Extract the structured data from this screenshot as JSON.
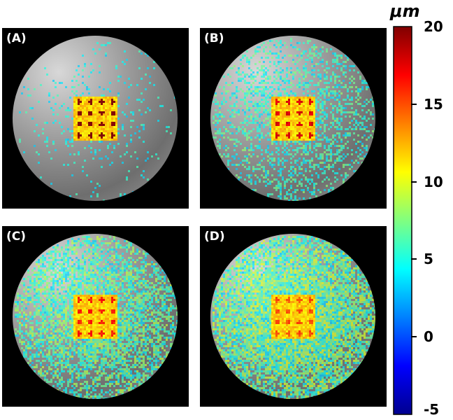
{
  "panels": [
    {
      "id": "A",
      "label": "(A)",
      "spread": 0.08,
      "hot": 0.9
    },
    {
      "id": "B",
      "label": "(B)",
      "spread": 0.45,
      "hot": 0.8
    },
    {
      "id": "C",
      "label": "(C)",
      "spread": 0.75,
      "hot": 0.75
    },
    {
      "id": "D",
      "label": "(D)",
      "spread": 0.95,
      "hot": 0.7
    }
  ],
  "colorbar": {
    "unit": "μm",
    "min": -5,
    "max": 20,
    "tick_labels": [
      "20",
      "15",
      "10",
      "5",
      "0",
      "-5"
    ],
    "tick_values": [
      20,
      15,
      10,
      5,
      0,
      -5
    ],
    "colormap_stops": [
      "#00008f",
      "#0000ff",
      "#0080ff",
      "#00ffff",
      "#80ff80",
      "#ffff00",
      "#ff8000",
      "#ff0000",
      "#800000"
    ]
  },
  "colors": {
    "background": "#000000",
    "text_on_dark": "#ffffff"
  }
}
